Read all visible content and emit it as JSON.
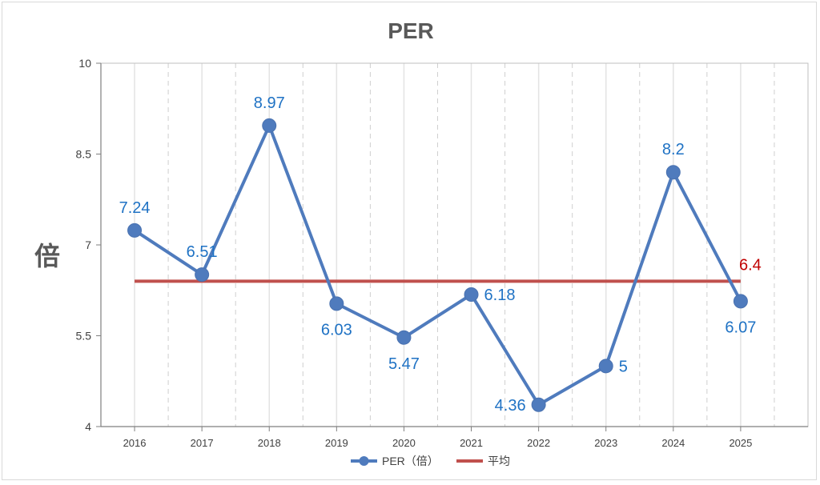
{
  "chart_data": {
    "type": "line",
    "title": "PER",
    "ylabel": "倍",
    "xlabel": "",
    "categories": [
      "2016",
      "2017",
      "2018",
      "2019",
      "2020",
      "2021",
      "2022",
      "2023",
      "2024",
      "2025"
    ],
    "ylim": [
      4,
      10
    ],
    "yticks": [
      "4",
      "5.5",
      "7",
      "8.5",
      "10"
    ],
    "series": [
      {
        "name": "PER（倍）",
        "values": [
          7.24,
          6.51,
          8.97,
          6.03,
          5.47,
          6.18,
          4.36,
          5,
          8.2,
          6.07
        ],
        "labels": [
          "7.24",
          "6.51",
          "8.97",
          "6.03",
          "5.47",
          "6.18",
          "4.36",
          "5",
          "8.2",
          "6.07"
        ],
        "color": "#4f7bbd",
        "label_color": "#1f72c4",
        "marker": "circle"
      },
      {
        "name": "平均",
        "values": [
          6.4,
          6.4,
          6.4,
          6.4,
          6.4,
          6.4,
          6.4,
          6.4,
          6.4,
          6.4
        ],
        "end_label": "6.4",
        "color": "#c0504d",
        "label_color": "#c00000"
      }
    ],
    "grid": "vertical-dashed",
    "legend_position": "bottom"
  }
}
